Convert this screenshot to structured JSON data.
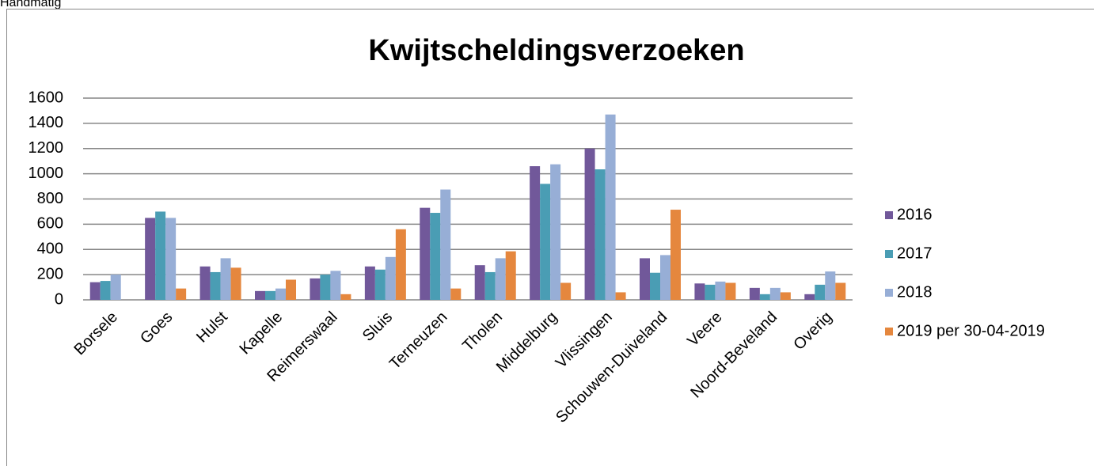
{
  "page_label": "Handmatig",
  "chart_data": {
    "type": "bar",
    "title": "Kwijtscheldingsverzoeken",
    "categories": [
      "Borsele",
      "Goes",
      "Hulst",
      "Kapelle",
      "Reimerswaal",
      "Sluis",
      "Terneuzen",
      "Tholen",
      "Middelburg",
      "Vlissingen",
      "Schouwen-Duiveland",
      "Veere",
      "Noord-Beveland",
      "Overig"
    ],
    "series": [
      {
        "name": "2016",
        "color": "#71589a",
        "values": [
          140,
          650,
          265,
          70,
          170,
          265,
          730,
          275,
          1060,
          1200,
          330,
          130,
          95,
          45
        ]
      },
      {
        "name": "2017",
        "color": "#4a9db4",
        "values": [
          150,
          700,
          220,
          70,
          200,
          240,
          690,
          220,
          920,
          1035,
          215,
          120,
          45,
          120
        ]
      },
      {
        "name": "2018",
        "color": "#97aed6",
        "values": [
          200,
          650,
          330,
          90,
          230,
          340,
          875,
          330,
          1075,
          1470,
          355,
          145,
          95,
          225
        ]
      },
      {
        "name": "2019 per 30-04-2019",
        "color": "#e5873e",
        "values": [
          0,
          90,
          255,
          160,
          45,
          560,
          90,
          385,
          135,
          60,
          715,
          135,
          60,
          135
        ]
      }
    ],
    "ylim": [
      0,
      1600
    ],
    "yticks": [
      0,
      200,
      400,
      600,
      800,
      1000,
      1200,
      1400,
      1600
    ],
    "grid": true,
    "legend": "right"
  }
}
